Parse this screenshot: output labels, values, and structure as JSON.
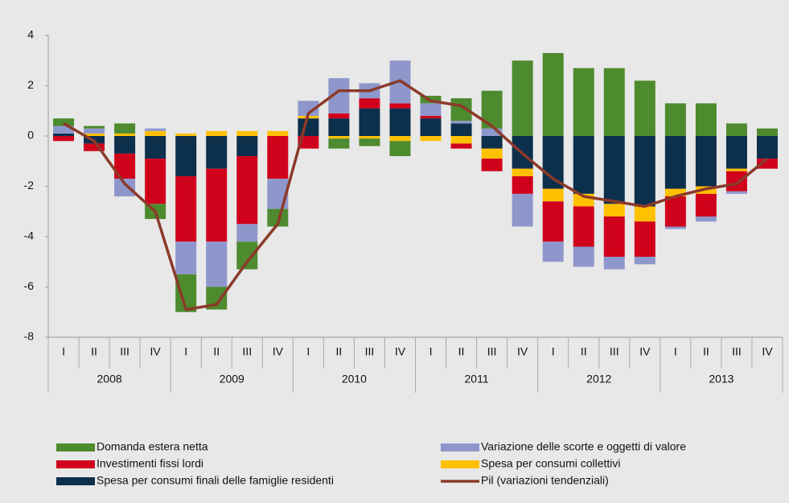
{
  "chart_data": {
    "type": "bar",
    "stacked": true,
    "categories": [
      "I",
      "II",
      "III",
      "IV",
      "I",
      "II",
      "III",
      "IV",
      "I",
      "II",
      "III",
      "IV",
      "I",
      "II",
      "III",
      "IV",
      "I",
      "II",
      "III",
      "IV",
      "I",
      "II",
      "III",
      "IV"
    ],
    "years": [
      "2008",
      "2009",
      "2010",
      "2011",
      "2012",
      "2013"
    ],
    "ylim": [
      -8,
      4
    ],
    "yticks": [
      -8,
      -6,
      -4,
      -2,
      0,
      2,
      4
    ],
    "series": [
      {
        "name": "Domanda estera netta",
        "color": "#4e8a2e",
        "values": [
          0.3,
          0.1,
          0.4,
          -0.6,
          -1.5,
          -0.9,
          -1.1,
          -0.7,
          0,
          -0.4,
          -0.3,
          -0.6,
          0.3,
          0.9,
          1.5,
          3.0,
          3.3,
          2.7,
          2.7,
          2.2,
          1.3,
          1.3,
          0.5,
          0.3
        ]
      },
      {
        "name": "Variazione delle scorte e oggetti di valore",
        "color": "#8e97cc",
        "values": [
          0.3,
          0.2,
          -0.7,
          0.1,
          -1.3,
          -1.8,
          -0.7,
          -1.2,
          0.6,
          1.4,
          0.6,
          1.7,
          0.5,
          0.1,
          0.3,
          -1.3,
          -0.8,
          -0.8,
          -0.5,
          -0.3,
          -0.1,
          -0.2,
          -0.1,
          0
        ]
      },
      {
        "name": "Investimenti fissi lordi",
        "color": "#d0021b",
        "values": [
          -0.2,
          -0.3,
          -1.0,
          -1.8,
          -2.6,
          -2.9,
          -2.7,
          -1.7,
          -0.5,
          0.2,
          0.4,
          0.2,
          0.1,
          -0.2,
          -0.5,
          -0.7,
          -1.6,
          -1.6,
          -1.6,
          -1.4,
          -1.2,
          -0.9,
          -0.8,
          -0.4
        ]
      },
      {
        "name": "Spesa per consumi collettivi",
        "color": "#ffc000",
        "values": [
          0,
          0.1,
          0.1,
          0.2,
          0.1,
          0.2,
          0.2,
          0.2,
          0.1,
          -0.1,
          -0.1,
          -0.2,
          -0.2,
          -0.3,
          -0.4,
          -0.3,
          -0.5,
          -0.5,
          -0.5,
          -0.6,
          -0.3,
          -0.3,
          -0.1,
          0
        ]
      },
      {
        "name": "Spesa per consumi finali delle famiglie residenti",
        "color": "#0c2f4c",
        "values": [
          0.1,
          -0.3,
          -0.7,
          -0.9,
          -1.6,
          -1.3,
          -0.8,
          0,
          0.7,
          0.7,
          1.1,
          1.1,
          0.7,
          0.5,
          -0.5,
          -1.3,
          -2.1,
          -2.3,
          -2.7,
          -2.8,
          -2.1,
          -2.0,
          -1.3,
          -0.9
        ]
      },
      {
        "name": "Pil (variazioni tendenziali)",
        "color": "#8b3a2a",
        "kind": "line",
        "values": [
          0.5,
          -0.2,
          -1.9,
          -3.0,
          -6.9,
          -6.7,
          -5.0,
          -3.5,
          0.9,
          1.8,
          1.8,
          2.2,
          1.4,
          1.2,
          0.4,
          -0.7,
          -1.7,
          -2.4,
          -2.6,
          -2.8,
          -2.4,
          -2.1,
          -1.9,
          -0.9
        ]
      }
    ]
  }
}
